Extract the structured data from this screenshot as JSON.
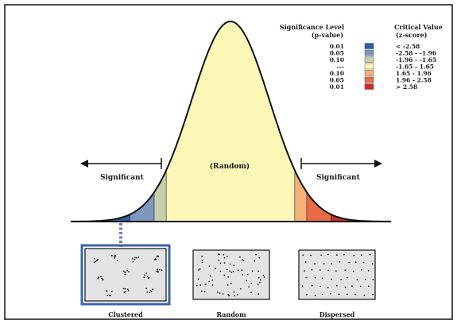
{
  "title": "",
  "legend": {
    "sig_header_line1": "Significance Level",
    "sig_header_line2": "(p-value)",
    "crit_header_line1": "Critical Value",
    "crit_header_line2": "(z-score)",
    "rows": [
      {
        "p": "0.01",
        "z": "< -2.58",
        "color": "#2f5f9f"
      },
      {
        "p": "0.05",
        "z": "-2.58 - -1.96",
        "color": "#7d97bd"
      },
      {
        "p": "0.10",
        "z": "-1.96 - -1.65",
        "color": "#c5cfb0"
      },
      {
        "p": "---",
        "z": "-1.65 - 1.65",
        "color": "#fbf7b6"
      },
      {
        "p": "0.10",
        "z": "1.65 - 1.96",
        "color": "#f6b278"
      },
      {
        "p": "0.05",
        "z": "1.96 - 2.58",
        "color": "#ea6b43"
      },
      {
        "p": "0.01",
        "z": "> 2.58",
        "color": "#cc2a22"
      }
    ]
  },
  "curve": {
    "center_label": "(Random)",
    "left_label": "Significant",
    "right_label": "Significant",
    "region_boundaries_z": [
      -2.58,
      -1.96,
      -1.65,
      1.65,
      1.96,
      2.58
    ],
    "line_color": "#111111"
  },
  "patterns": [
    {
      "label": "Clustered",
      "type": "clustered",
      "highlighted": true
    },
    {
      "label": "Random",
      "type": "random",
      "highlighted": false
    },
    {
      "label": "Dispersed",
      "type": "dispersed",
      "highlighted": false
    }
  ],
  "colors": {
    "panel_border": "#111111",
    "highlight_border": "#3b63a8",
    "pattern_fill": "#e3e3e3",
    "dotted_link": "#6a82b4"
  }
}
